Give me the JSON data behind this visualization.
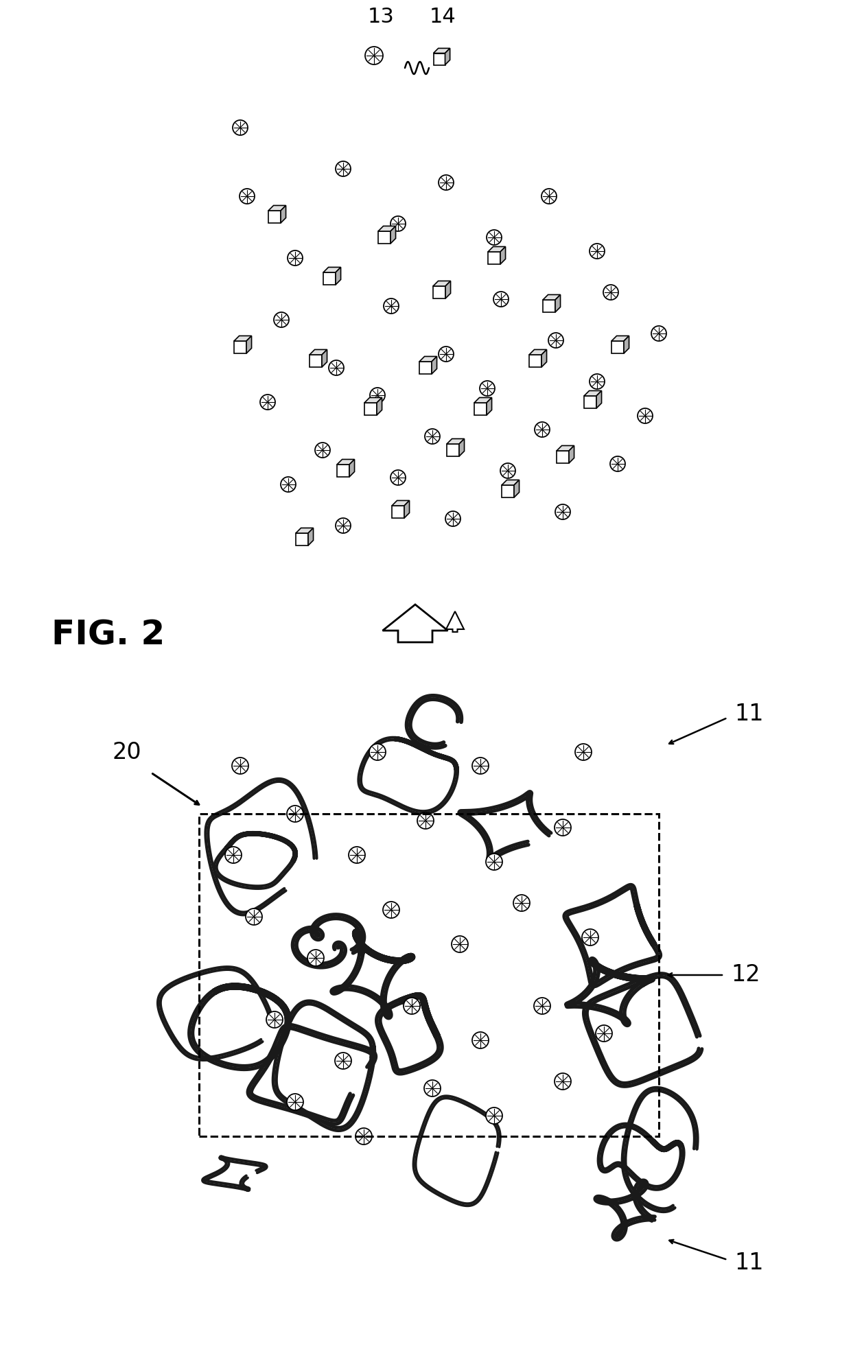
{
  "title": "FIG. 2",
  "label_13": "13",
  "label_14": "14",
  "label_11": "11",
  "label_12": "12",
  "label_20": "20",
  "bg_color": "#ffffff",
  "fig_width": 12.4,
  "fig_height": 19.66,
  "dpi": 100
}
